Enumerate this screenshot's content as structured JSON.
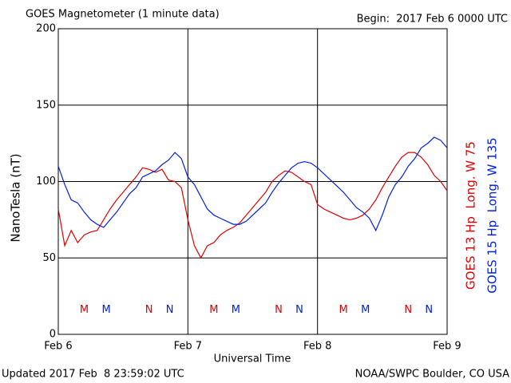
{
  "chart_data": {
    "type": "line",
    "title": "GOES Magnetometer (1 minute data)",
    "subtitle": "Begin:  2017 Feb 6 0000 UTC",
    "ylabel": "NanoTesla (nT)",
    "xlabel": "Universal Time",
    "footer_left": "Updated 2017 Feb  8 23:59:02 UTC",
    "footer_right": "NOAA/SWPC Boulder, CO USA",
    "xlim": [
      0,
      3
    ],
    "xticks": [
      {
        "value": 0,
        "label": "Feb 6"
      },
      {
        "value": 1,
        "label": "Feb 7"
      },
      {
        "value": 2,
        "label": "Feb 8"
      },
      {
        "value": 3,
        "label": "Feb 9"
      }
    ],
    "ylim": [
      0,
      200
    ],
    "yticks": [
      0,
      50,
      100,
      150,
      200
    ],
    "grid": true,
    "x": [
      0,
      0.05,
      0.1,
      0.15,
      0.2,
      0.25,
      0.3,
      0.35,
      0.4,
      0.45,
      0.5,
      0.55,
      0.6,
      0.65,
      0.7,
      0.75,
      0.8,
      0.85,
      0.9,
      0.95,
      1,
      1.05,
      1.1,
      1.15,
      1.2,
      1.25,
      1.3,
      1.35,
      1.4,
      1.45,
      1.5,
      1.55,
      1.6,
      1.65,
      1.7,
      1.75,
      1.8,
      1.85,
      1.9,
      1.95,
      2,
      2.05,
      2.1,
      2.15,
      2.2,
      2.25,
      2.3,
      2.35,
      2.4,
      2.45,
      2.5,
      2.55,
      2.6,
      2.65,
      2.7,
      2.75,
      2.8,
      2.85,
      2.9,
      2.95,
      3
    ],
    "series": [
      {
        "name": "GOES 13 Hp  Long. W 75",
        "color": "#e00000",
        "values": [
          82,
          58,
          68,
          60,
          65,
          67,
          68,
          75,
          82,
          88,
          93,
          98,
          103,
          109,
          108,
          106,
          108,
          101,
          100,
          96,
          75,
          58,
          50,
          58,
          60,
          65,
          68,
          70,
          73,
          78,
          83,
          88,
          93,
          100,
          104,
          107,
          106,
          103,
          100,
          98,
          85,
          82,
          80,
          78,
          76,
          75,
          76,
          78,
          82,
          88,
          96,
          103,
          110,
          116,
          119,
          119,
          116,
          111,
          104,
          100,
          94
        ]
      },
      {
        "name": "GOES 15 Hp  Long. W 135",
        "color": "#0020e0",
        "values": [
          110,
          98,
          88,
          86,
          80,
          75,
          72,
          70,
          75,
          80,
          86,
          92,
          96,
          103,
          105,
          107,
          111,
          114,
          119,
          115,
          103,
          98,
          90,
          82,
          78,
          76,
          74,
          72,
          72,
          74,
          78,
          82,
          86,
          93,
          99,
          104,
          109,
          112,
          113,
          112,
          109,
          105,
          101,
          97,
          93,
          88,
          83,
          80,
          76,
          68,
          78,
          90,
          98,
          103,
          110,
          115,
          122,
          125,
          129,
          127,
          122
        ]
      }
    ],
    "annotations": [
      {
        "text": "M",
        "x": 0.2,
        "y": 16,
        "color": "#e00000"
      },
      {
        "text": "M",
        "x": 0.37,
        "y": 16,
        "color": "#0020e0"
      },
      {
        "text": "N",
        "x": 0.7,
        "y": 16,
        "color": "#e00000"
      },
      {
        "text": "N",
        "x": 0.86,
        "y": 16,
        "color": "#0020e0"
      },
      {
        "text": "M",
        "x": 1.2,
        "y": 16,
        "color": "#e00000"
      },
      {
        "text": "M",
        "x": 1.37,
        "y": 16,
        "color": "#0020e0"
      },
      {
        "text": "N",
        "x": 1.7,
        "y": 16,
        "color": "#e00000"
      },
      {
        "text": "N",
        "x": 1.86,
        "y": 16,
        "color": "#0020e0"
      },
      {
        "text": "M",
        "x": 2.2,
        "y": 16,
        "color": "#e00000"
      },
      {
        "text": "M",
        "x": 2.37,
        "y": 16,
        "color": "#0020e0"
      },
      {
        "text": "N",
        "x": 2.7,
        "y": 16,
        "color": "#e00000"
      },
      {
        "text": "N",
        "x": 2.86,
        "y": 16,
        "color": "#0020e0"
      }
    ]
  }
}
